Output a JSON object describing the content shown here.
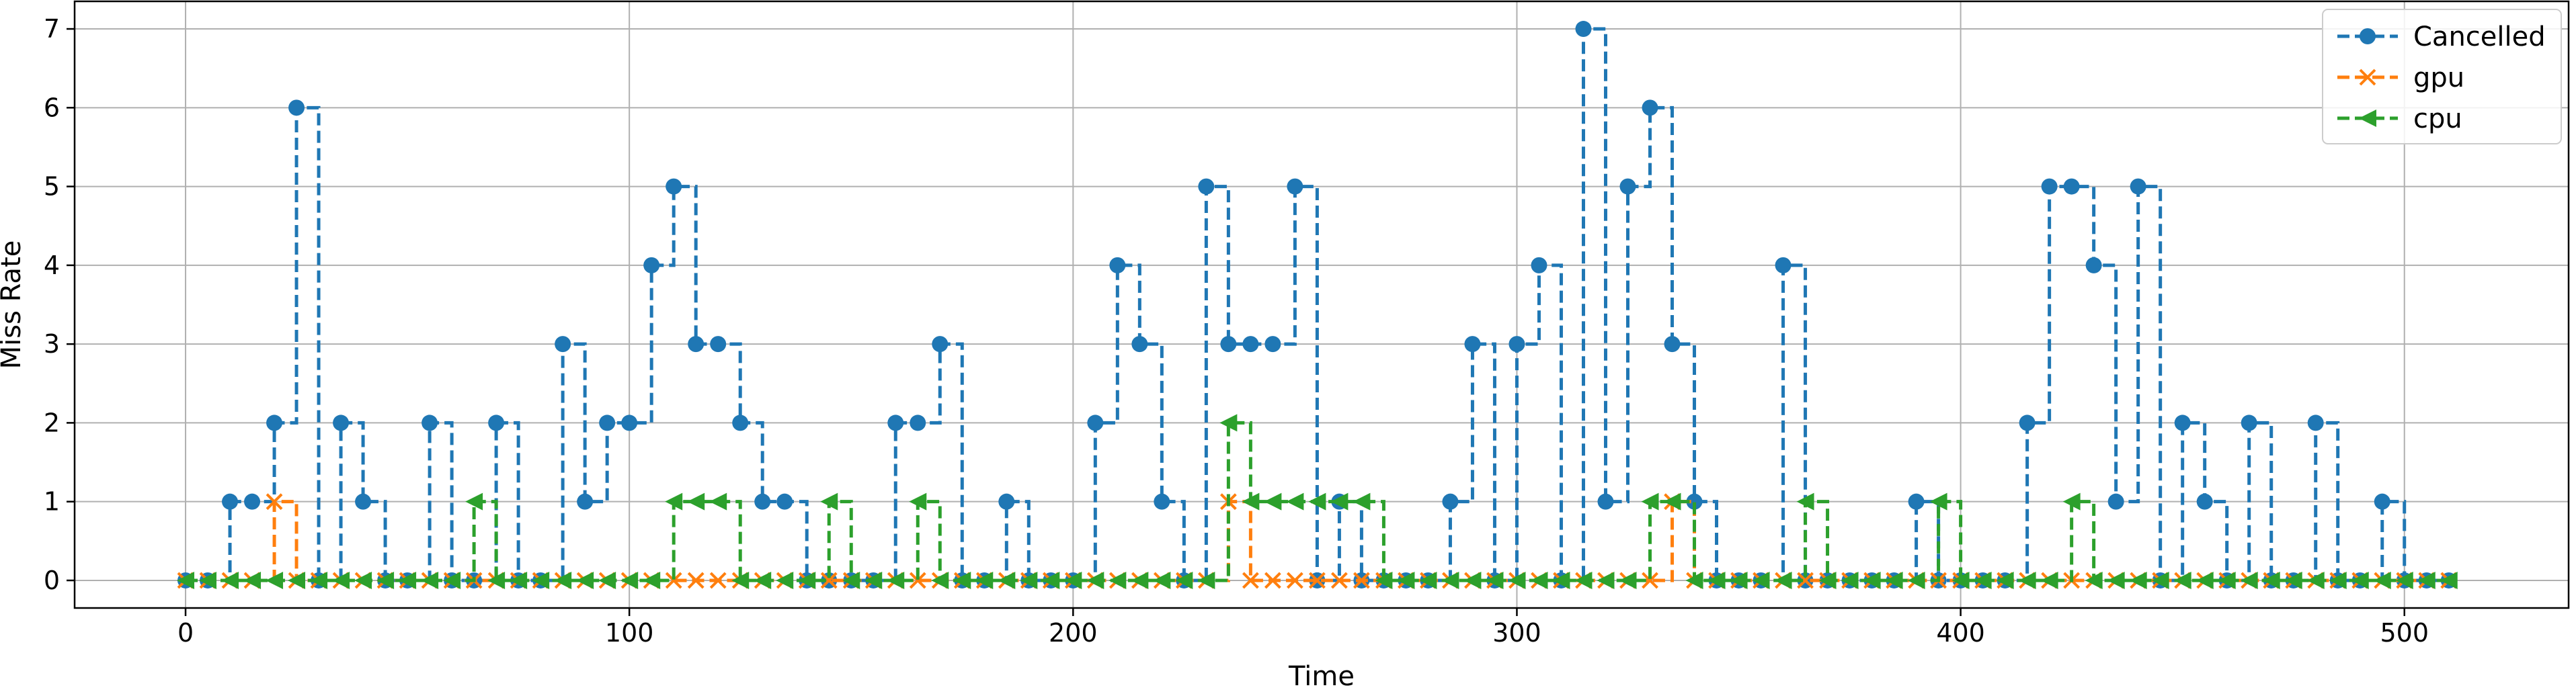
{
  "chart_data": {
    "type": "line",
    "drawstyle": "steps-post",
    "title": "",
    "xlabel": "Time",
    "ylabel": "Miss Rate",
    "xlim": [
      -25,
      537
    ],
    "ylim": [
      -0.35,
      7.35
    ],
    "xticks": [
      0,
      100,
      200,
      300,
      400,
      500
    ],
    "yticks": [
      0,
      1,
      2,
      3,
      4,
      5,
      6,
      7
    ],
    "grid": true,
    "legend_position": "top-right",
    "x": [
      0,
      5,
      10,
      15,
      20,
      25,
      30,
      35,
      40,
      45,
      50,
      55,
      60,
      65,
      70,
      75,
      80,
      85,
      90,
      95,
      100,
      105,
      110,
      115,
      120,
      125,
      130,
      135,
      140,
      145,
      150,
      155,
      160,
      165,
      170,
      175,
      180,
      185,
      190,
      195,
      200,
      205,
      210,
      215,
      220,
      225,
      230,
      235,
      240,
      245,
      250,
      255,
      260,
      265,
      270,
      275,
      280,
      285,
      290,
      295,
      300,
      305,
      310,
      315,
      320,
      325,
      330,
      335,
      340,
      345,
      350,
      355,
      360,
      365,
      370,
      375,
      380,
      385,
      390,
      395,
      400,
      405,
      410,
      415,
      420,
      425,
      430,
      435,
      440,
      445,
      450,
      455,
      460,
      465,
      470,
      475,
      480,
      485,
      490,
      495,
      500,
      505,
      510
    ],
    "series": [
      {
        "name": "Cancelled",
        "color": "#1f77b4",
        "marker": "circle",
        "values": [
          0,
          0,
          1,
          1,
          2,
          6,
          0,
          2,
          1,
          0,
          0,
          2,
          0,
          0,
          2,
          0,
          0,
          3,
          1,
          2,
          2,
          4,
          5,
          3,
          3,
          2,
          1,
          1,
          0,
          0,
          0,
          0,
          2,
          2,
          3,
          0,
          0,
          1,
          0,
          0,
          0,
          2,
          4,
          3,
          1,
          0,
          5,
          3,
          3,
          3,
          5,
          0,
          1,
          0,
          0,
          0,
          0,
          1,
          3,
          0,
          3,
          4,
          0,
          7,
          1,
          5,
          6,
          3,
          1,
          0,
          0,
          0,
          4,
          0,
          0,
          0,
          0,
          0,
          1,
          0,
          0,
          0,
          0,
          2,
          5,
          5,
          4,
          1,
          5,
          0,
          2,
          1,
          0,
          2,
          0,
          0,
          2,
          0,
          0,
          1,
          0,
          0,
          0
        ]
      },
      {
        "name": "gpu",
        "color": "#ff7f0e",
        "marker": "x",
        "values": [
          0,
          0,
          0,
          0,
          1,
          0,
          0,
          0,
          0,
          0,
          0,
          0,
          0,
          0,
          0,
          0,
          0,
          0,
          0,
          0,
          0,
          0,
          0,
          0,
          0,
          0,
          0,
          0,
          0,
          0,
          0,
          0,
          0,
          0,
          0,
          0,
          0,
          0,
          0,
          0,
          0,
          0,
          0,
          0,
          0,
          0,
          0,
          1,
          0,
          0,
          0,
          0,
          0,
          0,
          0,
          0,
          0,
          0,
          0,
          0,
          0,
          0,
          0,
          0,
          0,
          0,
          0,
          1,
          0,
          0,
          0,
          0,
          0,
          0,
          0,
          0,
          0,
          0,
          0,
          0,
          0,
          0,
          0,
          0,
          0,
          0,
          0,
          0,
          0,
          0,
          0,
          0,
          0,
          0,
          0,
          0,
          0,
          0,
          0,
          0,
          0,
          0,
          0
        ]
      },
      {
        "name": "cpu",
        "color": "#2ca02c",
        "marker": "triangle-left",
        "values": [
          0,
          0,
          0,
          0,
          0,
          0,
          0,
          0,
          0,
          0,
          0,
          0,
          0,
          1,
          0,
          0,
          0,
          0,
          0,
          0,
          0,
          0,
          1,
          1,
          1,
          0,
          0,
          0,
          0,
          1,
          0,
          0,
          0,
          1,
          0,
          0,
          0,
          0,
          0,
          0,
          0,
          0,
          0,
          0,
          0,
          0,
          0,
          2,
          1,
          1,
          1,
          1,
          1,
          1,
          0,
          0,
          0,
          0,
          0,
          0,
          0,
          0,
          0,
          0,
          0,
          0,
          1,
          1,
          0,
          0,
          0,
          0,
          0,
          1,
          0,
          0,
          0,
          0,
          0,
          1,
          0,
          0,
          0,
          0,
          0,
          1,
          0,
          0,
          0,
          0,
          0,
          0,
          0,
          0,
          0,
          0,
          0,
          0,
          0,
          0,
          0,
          0,
          0
        ]
      }
    ]
  }
}
